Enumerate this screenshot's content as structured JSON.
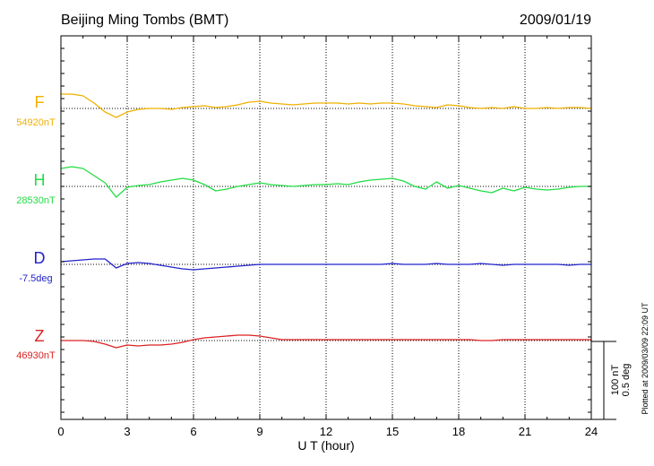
{
  "chart_data": {
    "type": "line",
    "title": "Beijing Ming Tombs (BMT)",
    "date": "2009/01/19",
    "xlabel": "U T (hour)",
    "xlim": [
      0,
      24
    ],
    "x_ticks": [
      "0",
      "3",
      "6",
      "9",
      "12",
      "15",
      "18",
      "21",
      "24"
    ],
    "grid": true,
    "scale_bar": {
      "label1": "100 nT",
      "label2": "0.5 deg"
    },
    "footnote": "Plotted at 2009/03/09 22:09 UT",
    "series": [
      {
        "name": "F",
        "baseline_label": "54920nT",
        "color": "#f0b000",
        "x": [
          0,
          0.5,
          1.0,
          1.5,
          2.0,
          2.5,
          3.0,
          3.5,
          4.0,
          4.5,
          5.0,
          5.5,
          6.0,
          6.5,
          7.0,
          7.5,
          8.0,
          8.5,
          9.0,
          9.5,
          10.0,
          10.5,
          11.0,
          11.5,
          12.0,
          12.5,
          13.0,
          13.5,
          14.0,
          14.5,
          15.0,
          15.5,
          16.0,
          16.5,
          17.0,
          17.5,
          18.0,
          18.5,
          19.0,
          19.5,
          20.0,
          20.5,
          21.0,
          21.5,
          22.0,
          22.5,
          23.0,
          23.5,
          24.0
        ],
        "values": [
          16,
          16,
          14,
          6,
          -4,
          -10,
          -4,
          -1,
          0,
          0,
          -1,
          1,
          2,
          3,
          1,
          2,
          4,
          7,
          8,
          6,
          5,
          4,
          5,
          6,
          6,
          6,
          5,
          6,
          5,
          6,
          6,
          5,
          3,
          2,
          1,
          4,
          3,
          1,
          0,
          1,
          0,
          2,
          0,
          0,
          1,
          0,
          1,
          1,
          0
        ]
      },
      {
        "name": "H",
        "baseline_label": "28530nT",
        "color": "#22dd44",
        "x": [
          0,
          0.5,
          1.0,
          1.5,
          2.0,
          2.5,
          3.0,
          3.5,
          4.0,
          4.5,
          5.0,
          5.5,
          6.0,
          6.5,
          7.0,
          7.5,
          8.0,
          8.5,
          9.0,
          9.5,
          10.0,
          10.5,
          11.0,
          11.5,
          12.0,
          12.5,
          13.0,
          13.5,
          14.0,
          14.5,
          15.0,
          15.5,
          16.0,
          16.5,
          17.0,
          17.5,
          18.0,
          18.5,
          19.0,
          19.5,
          20.0,
          20.5,
          21.0,
          21.5,
          22.0,
          22.5,
          23.0,
          23.5,
          24.0
        ],
        "values": [
          20,
          22,
          20,
          12,
          4,
          -12,
          -1,
          1,
          2,
          5,
          7,
          9,
          7,
          2,
          -5,
          -3,
          0,
          2,
          4,
          2,
          1,
          0,
          1,
          2,
          2,
          3,
          2,
          5,
          7,
          8,
          9,
          6,
          0,
          -3,
          5,
          -2,
          1,
          -2,
          -5,
          -7,
          -2,
          -5,
          -1,
          -3,
          -4,
          -3,
          -1,
          0,
          0
        ]
      },
      {
        "name": "D",
        "baseline_label": "-7.5deg",
        "color": "#2222cc",
        "x": [
          0,
          0.5,
          1.0,
          1.5,
          2.0,
          2.5,
          3.0,
          3.5,
          4.0,
          4.5,
          5.0,
          5.5,
          6.0,
          6.5,
          7.0,
          7.5,
          8.0,
          8.5,
          9.0,
          9.5,
          10.0,
          10.5,
          11.0,
          11.5,
          12.0,
          12.5,
          13.0,
          13.5,
          14.0,
          14.5,
          15.0,
          15.5,
          16.0,
          16.5,
          17.0,
          17.5,
          18.0,
          18.5,
          19.0,
          19.5,
          20.0,
          20.5,
          21.0,
          21.5,
          22.0,
          22.5,
          23.0,
          23.5,
          24.0
        ],
        "values": [
          3,
          4,
          5,
          6,
          6,
          -4,
          1,
          2,
          1,
          -1,
          -3,
          -5,
          -6,
          -5,
          -4,
          -3,
          -2,
          -1,
          0,
          0,
          0,
          0,
          0,
          0,
          0,
          0,
          0,
          0,
          0,
          0,
          1,
          0,
          0,
          0,
          1,
          0,
          0,
          0,
          1,
          0,
          -1,
          0,
          0,
          0,
          0,
          0,
          -1,
          0,
          0
        ]
      },
      {
        "name": "Z",
        "baseline_label": "46930nT",
        "color": "#dd2222",
        "x": [
          0,
          0.5,
          1.0,
          1.5,
          2.0,
          2.5,
          3.0,
          3.5,
          4.0,
          4.5,
          5.0,
          5.5,
          6.0,
          6.5,
          7.0,
          7.5,
          8.0,
          8.5,
          9.0,
          9.5,
          10.0,
          10.5,
          11.0,
          11.5,
          12.0,
          12.5,
          13.0,
          13.5,
          14.0,
          14.5,
          15.0,
          15.5,
          16.0,
          16.5,
          17.0,
          17.5,
          18.0,
          18.5,
          19.0,
          19.5,
          20.0,
          20.5,
          21.0,
          21.5,
          22.0,
          22.5,
          23.0,
          23.5,
          24.0
        ],
        "values": [
          0,
          0,
          0,
          -1,
          -4,
          -8,
          -5,
          -6,
          -5,
          -5,
          -4,
          -2,
          1,
          3,
          4,
          5,
          6,
          6,
          5,
          3,
          1,
          1,
          1,
          1,
          1,
          1,
          1,
          1,
          1,
          1,
          1,
          1,
          1,
          1,
          1,
          1,
          1,
          1,
          0,
          0,
          1,
          1,
          1,
          1,
          1,
          1,
          1,
          1,
          1
        ]
      }
    ]
  }
}
